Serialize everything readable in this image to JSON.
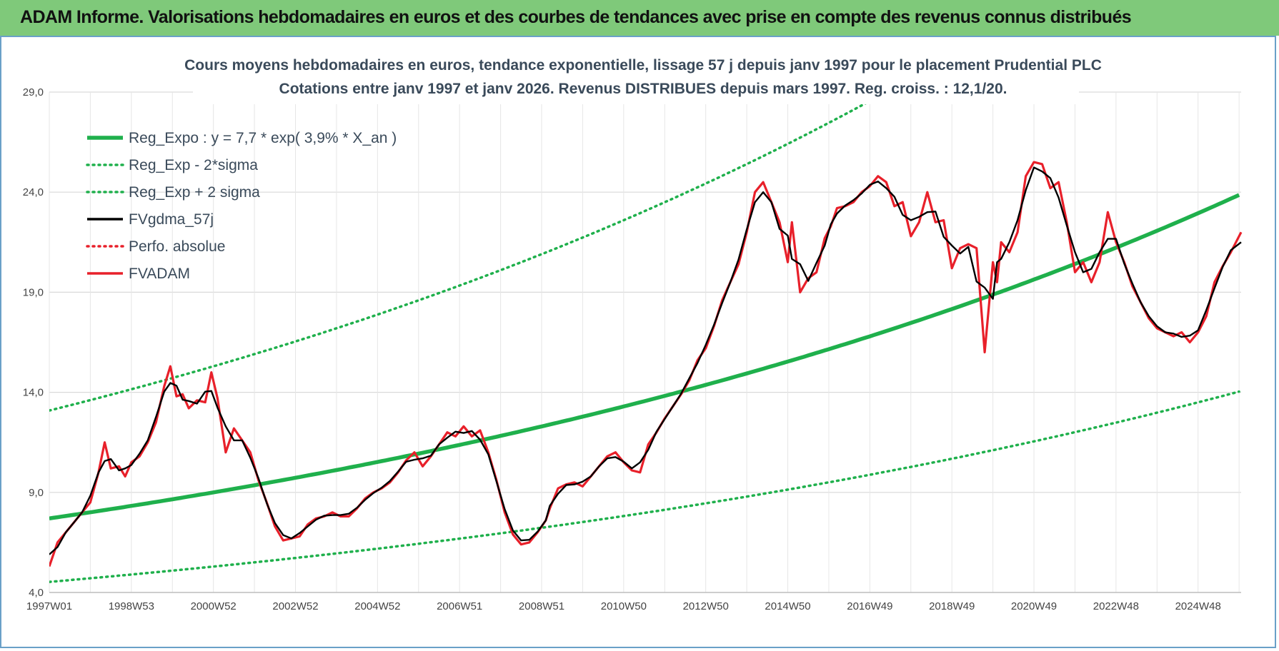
{
  "header": {
    "title": "ADAM Informe. Valorisations hebdomadaires en euros et des courbes de tendances avec prise en compte des revenus connus distribués"
  },
  "chart_data": {
    "type": "line",
    "title": "Cours moyens hebdomadaires en euros, tendance exponentielle, lissage 57 j depuis janv 1997 pour le placement Prudential PLC",
    "subtitle": "Cotations entre janv 1997 et janv 2026. Revenus DISTRIBUES depuis mars 1997. Reg. croiss. : 12,1/20.",
    "xlim": [
      1997.0,
      2026.05
    ],
    "ylim": [
      4,
      29
    ],
    "y_ticks": [
      "4,0",
      "9,0",
      "14,0",
      "19,0",
      "24,0",
      "29,0"
    ],
    "x_ticks": [
      {
        "label": "1997W01",
        "x": 1997.0
      },
      {
        "label": "1998W53",
        "x": 1999.0
      },
      {
        "label": "2000W52",
        "x": 2001.0
      },
      {
        "label": "2002W52",
        "x": 2003.0
      },
      {
        "label": "2004W52",
        "x": 2005.0
      },
      {
        "label": "2006W51",
        "x": 2007.0
      },
      {
        "label": "2008W51",
        "x": 2009.0
      },
      {
        "label": "2010W50",
        "x": 2011.0
      },
      {
        "label": "2012W50",
        "x": 2013.0
      },
      {
        "label": "2014W50",
        "x": 2015.0
      },
      {
        "label": "2016W49",
        "x": 2017.0
      },
      {
        "label": "2018W49",
        "x": 2019.0
      },
      {
        "label": "2020W49",
        "x": 2021.0
      },
      {
        "label": "2022W48",
        "x": 2023.0
      },
      {
        "label": "2024W48",
        "x": 2025.0
      }
    ],
    "grid": true,
    "legend_position": "top-left",
    "regression": {
      "a": 7.7,
      "rate": 0.039,
      "sigma_factor": 1.7
    },
    "series": [
      {
        "name": "Reg_Expo : y = 7,7 * exp( 3,9% *  X_an )",
        "color": "#1fb04c",
        "style": "solid",
        "kind": "reg"
      },
      {
        "name": "Reg_Exp - 2*sigma",
        "color": "#1fb04c",
        "style": "dotted",
        "kind": "reg_low"
      },
      {
        "name": "Reg_Exp + 2 sigma",
        "color": "#1fb04c",
        "style": "dotted",
        "kind": "reg_high"
      },
      {
        "name": "FVgdma_57j",
        "color": "#000000",
        "style": "solid",
        "kind": "smooth"
      },
      {
        "name": "Perfo. absolue",
        "color": "#e8202a",
        "style": "dotted",
        "kind": "none"
      },
      {
        "name": "FVADAM",
        "color": "#e8202a",
        "style": "solid",
        "kind": "price",
        "x": [
          1997.0,
          1997.2,
          1997.4,
          1997.6,
          1997.8,
          1998.0,
          1998.2,
          1998.35,
          1998.5,
          1998.7,
          1998.85,
          1999.0,
          1999.2,
          1999.4,
          1999.6,
          1999.8,
          1999.95,
          2000.1,
          2000.25,
          2000.4,
          2000.6,
          2000.8,
          2000.95,
          2001.1,
          2001.3,
          2001.5,
          2001.7,
          2001.9,
          2002.1,
          2002.3,
          2002.5,
          2002.7,
          2002.9,
          2003.1,
          2003.3,
          2003.5,
          2003.7,
          2003.9,
          2004.1,
          2004.3,
          2004.5,
          2004.7,
          2004.9,
          2005.1,
          2005.3,
          2005.5,
          2005.7,
          2005.9,
          2006.1,
          2006.3,
          2006.5,
          2006.7,
          2006.9,
          2007.1,
          2007.3,
          2007.5,
          2007.7,
          2007.9,
          2008.1,
          2008.3,
          2008.5,
          2008.7,
          2008.9,
          2009.1,
          2009.2,
          2009.4,
          2009.6,
          2009.8,
          2010.0,
          2010.2,
          2010.4,
          2010.6,
          2010.8,
          2011.0,
          2011.2,
          2011.4,
          2011.6,
          2011.8,
          2012.0,
          2012.2,
          2012.4,
          2012.6,
          2012.8,
          2013.0,
          2013.2,
          2013.4,
          2013.6,
          2013.8,
          2014.0,
          2014.2,
          2014.4,
          2014.6,
          2014.8,
          2015.0,
          2015.1,
          2015.3,
          2015.5,
          2015.7,
          2015.9,
          2016.05,
          2016.2,
          2016.4,
          2016.6,
          2016.8,
          2017.0,
          2017.2,
          2017.4,
          2017.6,
          2017.8,
          2018.0,
          2018.2,
          2018.4,
          2018.6,
          2018.8,
          2019.0,
          2019.2,
          2019.4,
          2019.6,
          2019.8,
          2020.0,
          2020.1,
          2020.2,
          2020.4,
          2020.6,
          2020.8,
          2021.0,
          2021.2,
          2021.4,
          2021.6,
          2021.8,
          2022.0,
          2022.2,
          2022.4,
          2022.6,
          2022.8,
          2023.0,
          2023.2,
          2023.4,
          2023.6,
          2023.8,
          2024.0,
          2024.2,
          2024.4,
          2024.6,
          2024.8,
          2025.0,
          2025.2,
          2025.4,
          2025.6,
          2025.8,
          2026.05
        ],
        "y": [
          5.3,
          6.5,
          7.0,
          7.5,
          8.0,
          8.5,
          10.0,
          11.5,
          10.2,
          10.3,
          9.8,
          10.5,
          10.8,
          11.5,
          12.5,
          14.3,
          15.3,
          13.8,
          13.9,
          13.2,
          13.6,
          13.5,
          15.0,
          13.7,
          11.0,
          12.2,
          11.6,
          11.0,
          9.6,
          8.5,
          7.3,
          6.6,
          6.7,
          6.8,
          7.4,
          7.7,
          7.8,
          8.0,
          7.8,
          7.8,
          8.2,
          8.7,
          9.0,
          9.2,
          9.5,
          10.0,
          10.6,
          11.0,
          10.3,
          10.8,
          11.4,
          12.0,
          11.8,
          12.3,
          11.8,
          12.1,
          11.0,
          9.6,
          8.0,
          6.9,
          6.4,
          6.5,
          7.0,
          7.6,
          8.2,
          9.2,
          9.4,
          9.5,
          9.3,
          9.8,
          10.3,
          10.8,
          11.0,
          10.5,
          10.1,
          10.0,
          11.4,
          12.0,
          12.7,
          13.3,
          13.9,
          14.6,
          15.6,
          16.2,
          17.3,
          18.6,
          19.5,
          20.4,
          22.0,
          24.0,
          24.5,
          23.5,
          22.5,
          20.5,
          22.5,
          19.0,
          19.7,
          20.0,
          21.7,
          22.3,
          23.2,
          23.3,
          23.5,
          24.0,
          24.3,
          24.8,
          24.5,
          23.3,
          23.5,
          21.8,
          22.5,
          24.0,
          22.5,
          22.6,
          20.2,
          21.2,
          21.4,
          21.2,
          16.0,
          20.5,
          19.5,
          21.5,
          21.0,
          22.0,
          24.8,
          25.5,
          25.4,
          24.2,
          24.5,
          22.5,
          20.0,
          20.5,
          19.5,
          20.5,
          23.0,
          21.5,
          20.5,
          19.3,
          18.5,
          17.7,
          17.2,
          17.0,
          16.8,
          17.0,
          16.5,
          17.0,
          17.8,
          19.5,
          20.3,
          21.0,
          22.0
        ]
      }
    ]
  }
}
